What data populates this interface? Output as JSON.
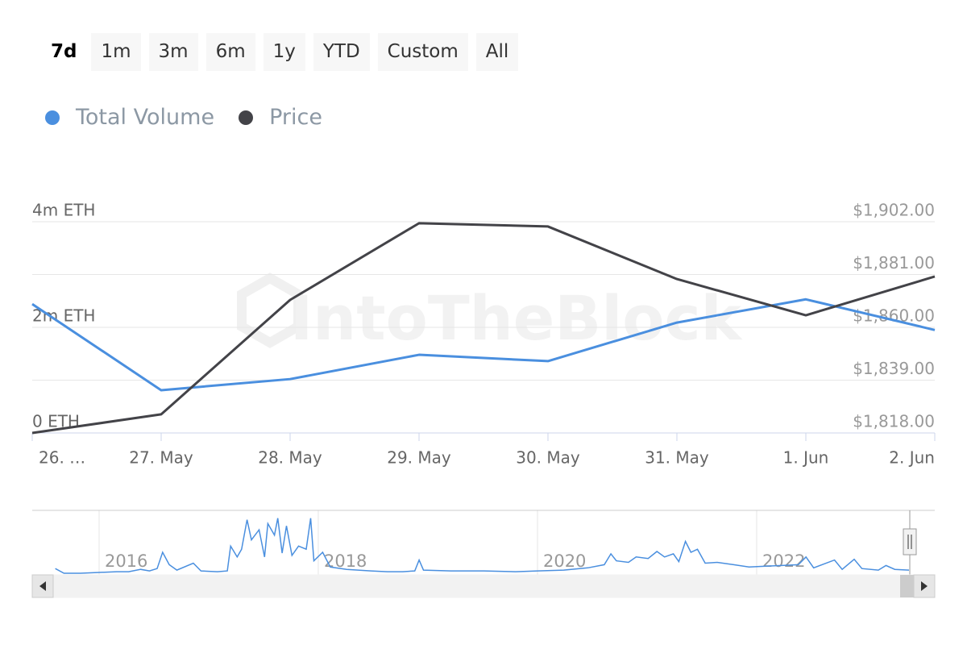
{
  "range_buttons": [
    "7d",
    "1m",
    "3m",
    "6m",
    "1y",
    "YTD",
    "Custom",
    "All"
  ],
  "selected_range": "7d",
  "watermark": "IntoTheBlock",
  "chart_data": {
    "type": "line",
    "categories": [
      "26. …",
      "27. May",
      "28. May",
      "29. May",
      "30. May",
      "31. May",
      "1. Jun",
      "2. Jun"
    ],
    "series": [
      {
        "name": "Total Volume",
        "color": "#4a8fdf",
        "axis": "y",
        "values": [
          2440000,
          810000,
          1020000,
          1480000,
          1360000,
          2090000,
          2530000,
          1950000
        ]
      },
      {
        "name": "Price",
        "color": "#434348",
        "axis": "y2",
        "values": [
          1818,
          1825.4,
          1870.9,
          1901.4,
          1900.1,
          1879.2,
          1864.8,
          1880.2
        ]
      }
    ],
    "ylim": [
      0,
      4000000
    ],
    "yticks": [
      {
        "value": 0,
        "label": "0 ETH"
      },
      {
        "value": 2000000,
        "label": "2m ETH"
      },
      {
        "value": 4000000,
        "label": "4m ETH"
      }
    ],
    "y2lim": [
      1818,
      1902
    ],
    "y2ticks": [
      {
        "value": 1818,
        "label": "$1,818.00"
      },
      {
        "value": 1839,
        "label": "$1,839.00"
      },
      {
        "value": 1860,
        "label": "$1,860.00"
      },
      {
        "value": 1881,
        "label": "$1,881.00"
      },
      {
        "value": 1902,
        "label": "$1,902.00"
      }
    ],
    "grid": true,
    "navigator": {
      "type": "line",
      "color": "#4a8fdf",
      "xlim": [
        2015.39,
        2023.625
      ],
      "xticks": [
        2016,
        2018,
        2020,
        2022
      ],
      "ylim": [
        0,
        8000000
      ],
      "x": [
        2015.6,
        2015.68,
        2015.83,
        2016.0,
        2016.16,
        2016.27,
        2016.38,
        2016.46,
        2016.53,
        2016.58,
        2016.64,
        2016.71,
        2016.86,
        2016.93,
        2017.08,
        2017.17,
        2017.2,
        2017.26,
        2017.3,
        2017.35,
        2017.39,
        2017.46,
        2017.51,
        2017.54,
        2017.6,
        2017.63,
        2017.67,
        2017.71,
        2017.76,
        2017.82,
        2017.89,
        2017.93,
        2017.96,
        2018.04,
        2018.11,
        2018.26,
        2018.48,
        2018.63,
        2018.77,
        2018.88,
        2018.92,
        2018.96,
        2019.21,
        2019.51,
        2019.8,
        2020.0,
        2020.24,
        2020.46,
        2020.61,
        2020.67,
        2020.72,
        2020.83,
        2020.9,
        2021.01,
        2021.09,
        2021.16,
        2021.24,
        2021.29,
        2021.35,
        2021.4,
        2021.46,
        2021.53,
        2021.64,
        2021.79,
        2021.93,
        2022.08,
        2022.23,
        2022.38,
        2022.45,
        2022.52,
        2022.71,
        2022.78,
        2022.89,
        2022.96,
        2023.11,
        2023.18,
        2023.26,
        2023.39
      ],
      "values": [
        660000,
        0,
        0,
        110000,
        220000,
        220000,
        550000,
        330000,
        660000,
        2970000,
        1210000,
        440000,
        1430000,
        330000,
        220000,
        330000,
        3850000,
        2310000,
        3410000,
        7590000,
        4730000,
        6160000,
        2310000,
        7040000,
        5390000,
        7810000,
        2860000,
        6710000,
        2530000,
        3850000,
        3410000,
        7810000,
        1760000,
        2970000,
        880000,
        550000,
        330000,
        220000,
        220000,
        330000,
        1870000,
        440000,
        330000,
        330000,
        220000,
        330000,
        440000,
        770000,
        1210000,
        2750000,
        1760000,
        1540000,
        2310000,
        2090000,
        3080000,
        2310000,
        2750000,
        1650000,
        4510000,
        2970000,
        3410000,
        1430000,
        1540000,
        1210000,
        880000,
        990000,
        1100000,
        1210000,
        2310000,
        770000,
        1870000,
        550000,
        1980000,
        660000,
        440000,
        1100000,
        550000,
        440000
      ]
    }
  }
}
